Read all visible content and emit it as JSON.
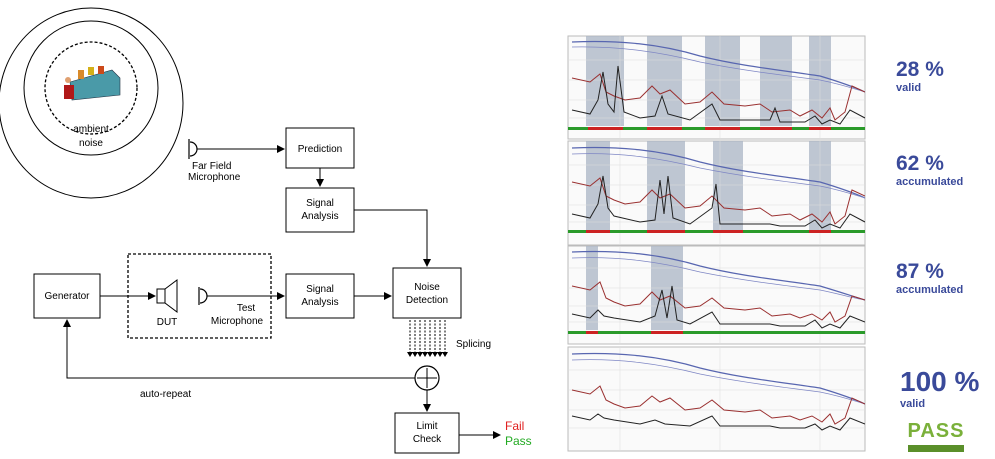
{
  "diagram": {
    "ambient_label_1": "ambient",
    "ambient_label_2": "noise",
    "far_mic_label_1": "Far Field",
    "far_mic_label_2": "Microphone",
    "prediction": "Prediction",
    "signal_analysis_top_1": "Signal",
    "signal_analysis_top_2": "Analysis",
    "generator": "Generator",
    "dut": "DUT",
    "test_mic_1": "Test",
    "test_mic_2": "Microphone",
    "signal_analysis_mid_1": "Signal",
    "signal_analysis_mid_2": "Analysis",
    "noise_detection_1": "Noise",
    "noise_detection_2": "Detection",
    "splicing": "Splicing",
    "auto_repeat": "auto-repeat",
    "limit_check_1": "Limit",
    "limit_check_2": "Check",
    "fail": "Fail",
    "pass": "Pass",
    "fail_color": "#e02020",
    "pass_color": "#22aa22"
  },
  "results": [
    {
      "percent": "28 %",
      "caption": "valid"
    },
    {
      "percent": "62 %",
      "caption": "accumulated"
    },
    {
      "percent": "87 %",
      "caption": "accumulated"
    },
    {
      "percent": "100 %",
      "caption": "valid"
    }
  ],
  "pass_badge": "PASS",
  "accent_color": "#3a4a9a"
}
